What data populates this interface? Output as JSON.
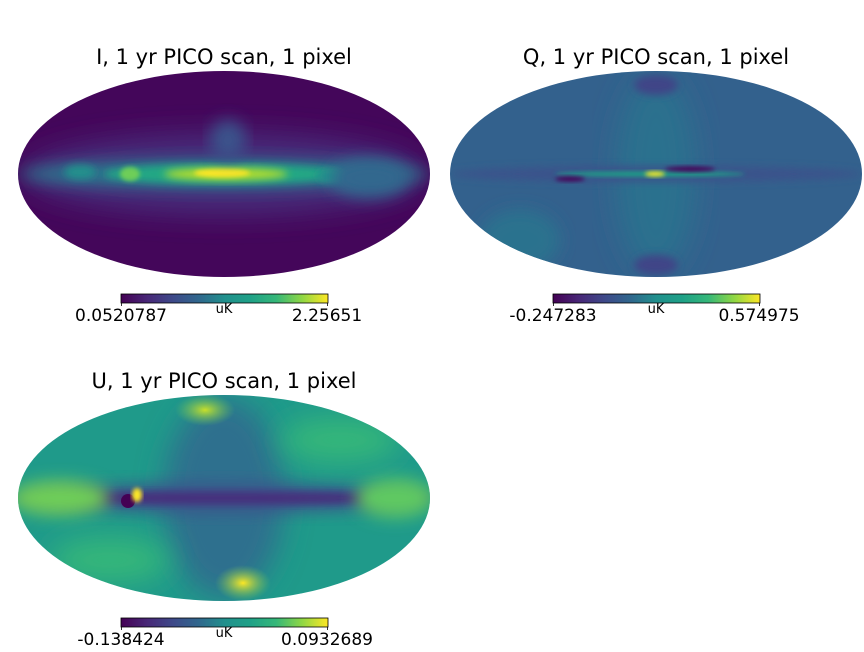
{
  "figure": {
    "panels": [
      {
        "id": "I",
        "title": "I, 1 yr PICO scan, 1 pixel",
        "colorbar": {
          "min_label": "0.0520787",
          "max_label": "2.25651",
          "unit": "uK",
          "colormap": "viridis"
        }
      },
      {
        "id": "Q",
        "title": "Q, 1 yr PICO scan, 1 pixel",
        "colorbar": {
          "min_label": "-0.247283",
          "max_label": "0.574975",
          "unit": "uK",
          "colormap": "viridis"
        }
      },
      {
        "id": "U",
        "title": "U, 1 yr PICO scan, 1 pixel",
        "colorbar": {
          "min_label": "-0.138424",
          "max_label": "0.0932689",
          "unit": "uK",
          "colormap": "viridis"
        }
      }
    ]
  }
}
